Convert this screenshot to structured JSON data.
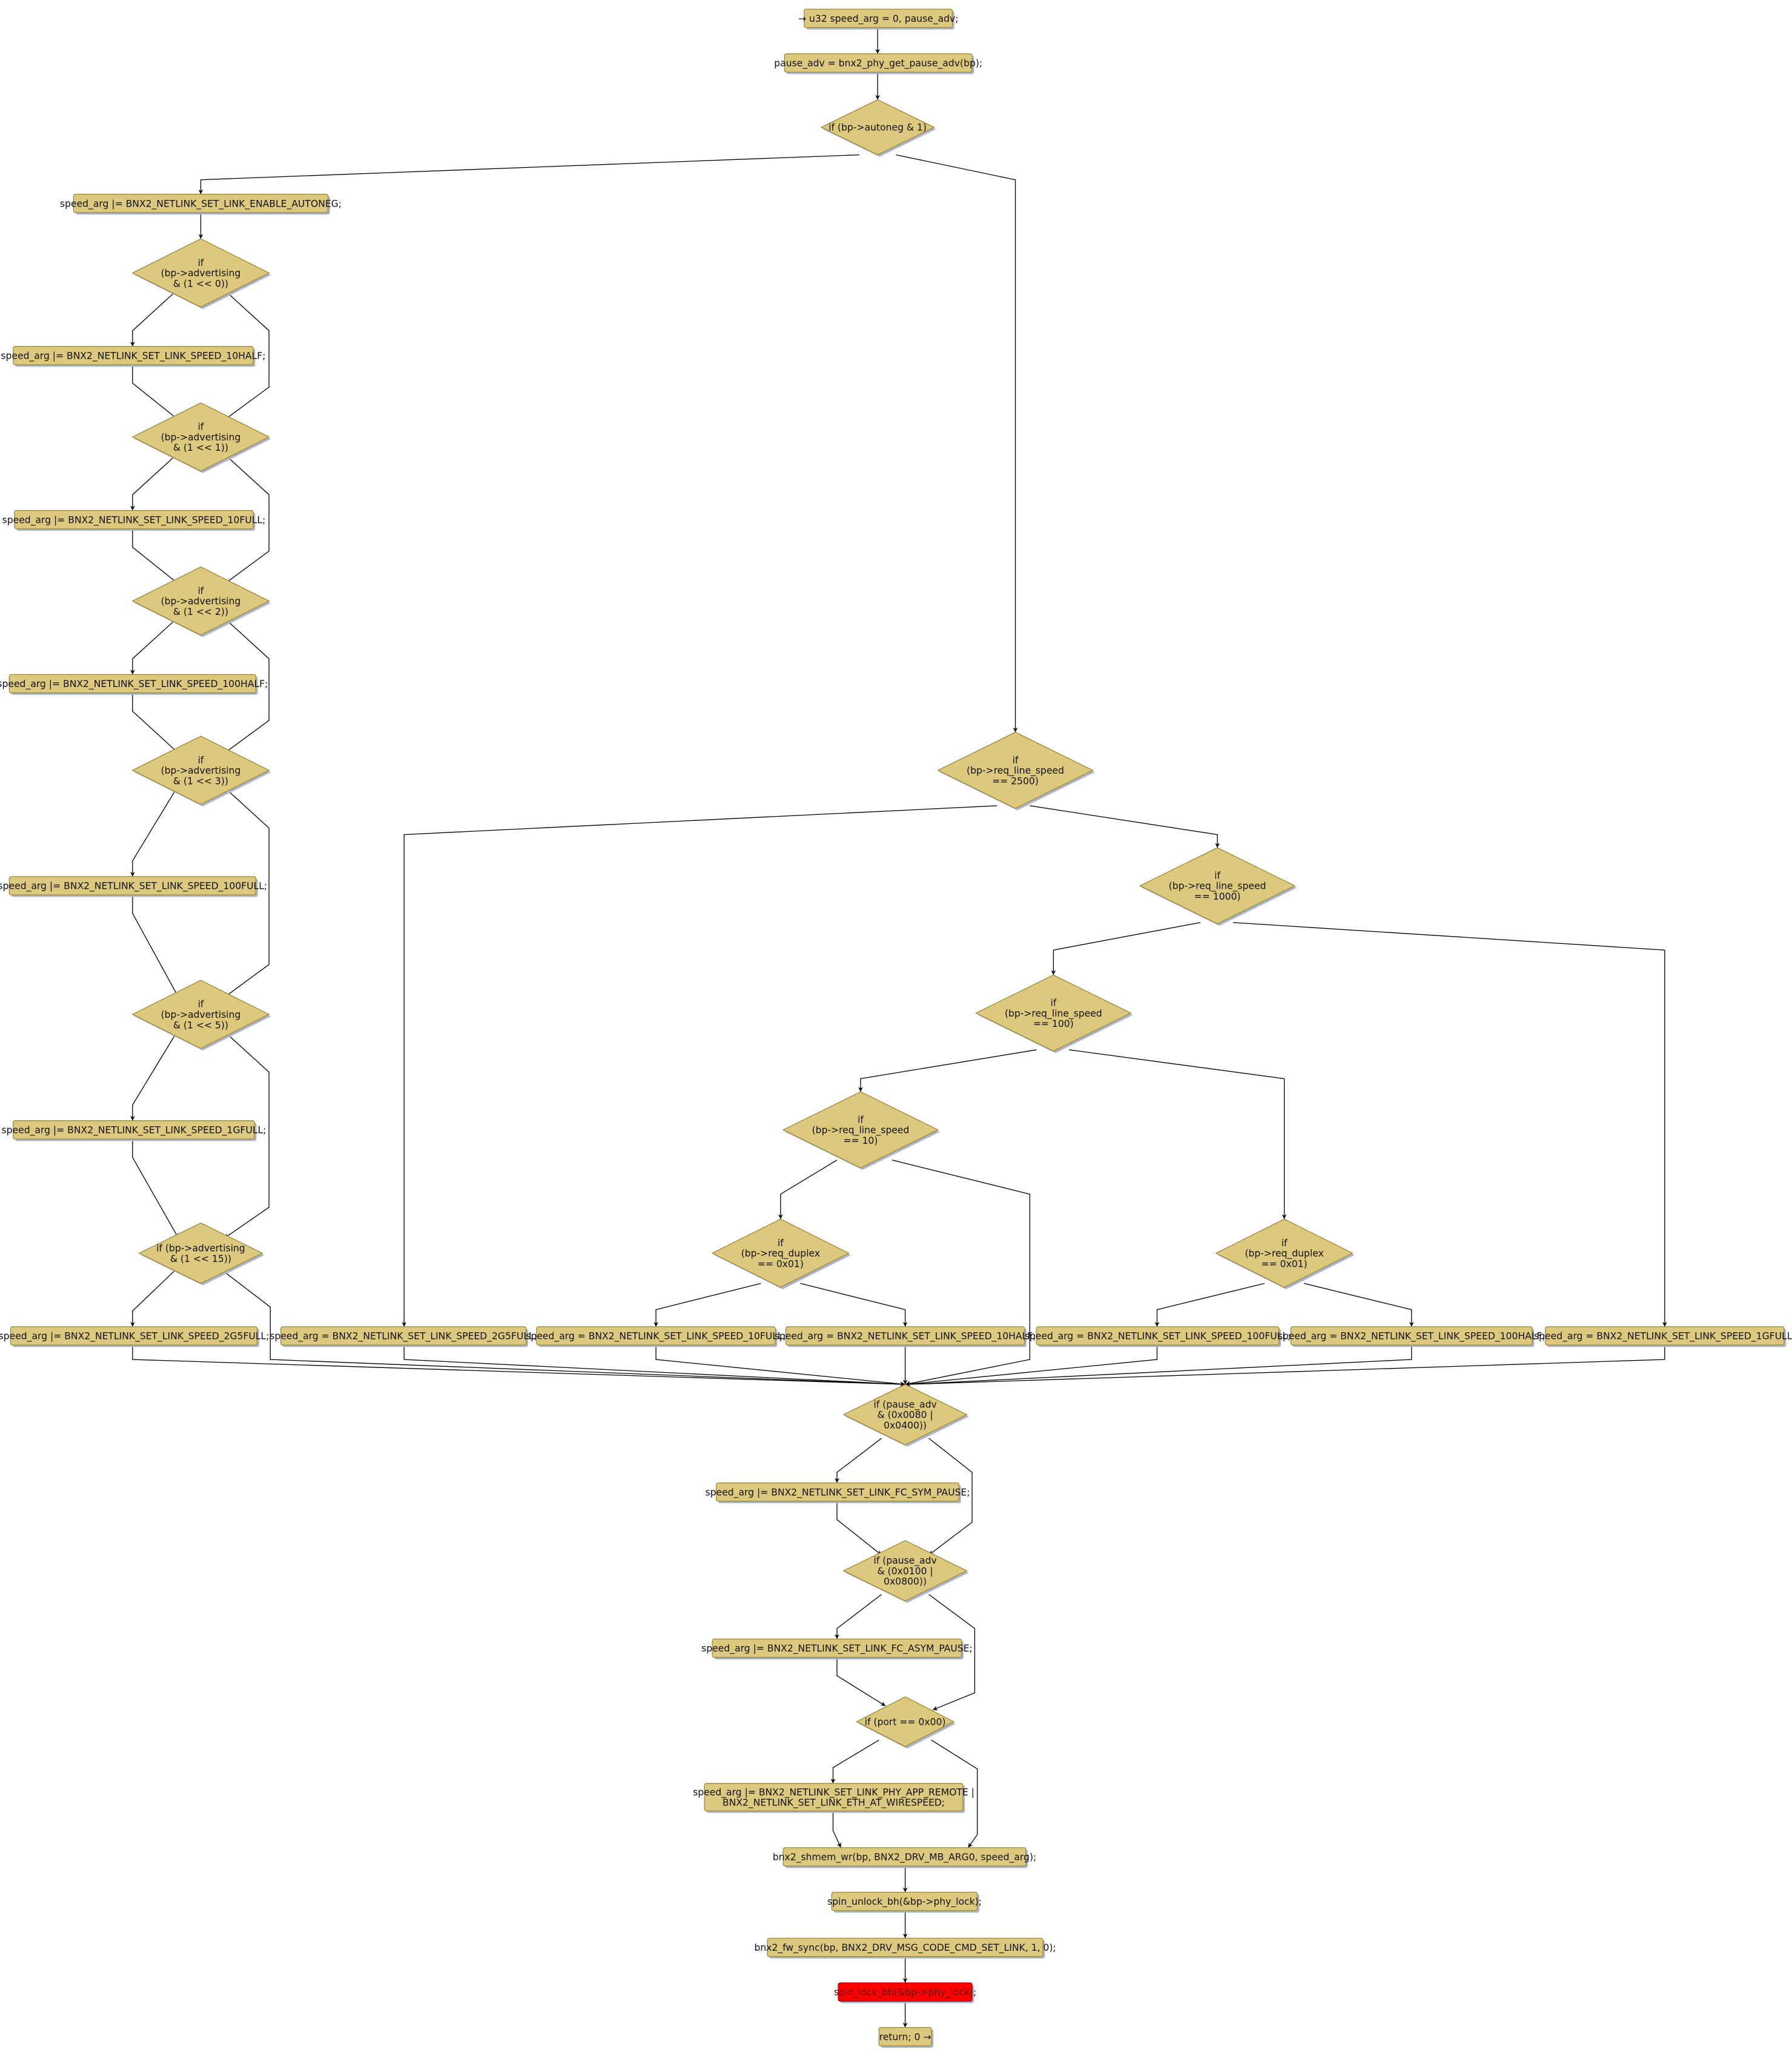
{
  "colors": {
    "node_fill": "#ddc97d",
    "highlight_fill": "#ff0000",
    "shadow": "#aab5cf"
  },
  "nodes": [
    {
      "id": "n0",
      "shape": "box",
      "lines": [
        "→ u32 speed_arg = 0, pause_adv;"
      ]
    },
    {
      "id": "n1",
      "shape": "box",
      "lines": [
        "pause_adv = bnx2_phy_get_pause_adv(bp);"
      ]
    },
    {
      "id": "d0",
      "shape": "diamond",
      "lines": [
        "if (bp->autoneg & 1)"
      ]
    },
    {
      "id": "n2",
      "shape": "box",
      "lines": [
        "speed_arg |= BNX2_NETLINK_SET_LINK_ENABLE_AUTONEG;"
      ]
    },
    {
      "id": "d1",
      "shape": "diamond",
      "lines": [
        "if",
        "(bp->advertising",
        "& (1 << 0))"
      ]
    },
    {
      "id": "n3",
      "shape": "box",
      "lines": [
        "speed_arg |= BNX2_NETLINK_SET_LINK_SPEED_10HALF;"
      ]
    },
    {
      "id": "d2",
      "shape": "diamond",
      "lines": [
        "if",
        "(bp->advertising",
        "& (1 << 1))"
      ]
    },
    {
      "id": "n4",
      "shape": "box",
      "lines": [
        "speed_arg |= BNX2_NETLINK_SET_LINK_SPEED_10FULL;"
      ]
    },
    {
      "id": "d3",
      "shape": "diamond",
      "lines": [
        "if",
        "(bp->advertising",
        "& (1 << 2))"
      ]
    },
    {
      "id": "n5",
      "shape": "box",
      "lines": [
        "speed_arg |= BNX2_NETLINK_SET_LINK_SPEED_100HALF;"
      ]
    },
    {
      "id": "d4",
      "shape": "diamond",
      "lines": [
        "if",
        "(bp->advertising",
        "& (1 << 3))"
      ]
    },
    {
      "id": "n6",
      "shape": "box",
      "lines": [
        "speed_arg |= BNX2_NETLINK_SET_LINK_SPEED_100FULL;"
      ]
    },
    {
      "id": "d5",
      "shape": "diamond",
      "lines": [
        "if",
        "(bp->advertising",
        "& (1 << 5))"
      ]
    },
    {
      "id": "n7",
      "shape": "box",
      "lines": [
        "speed_arg |= BNX2_NETLINK_SET_LINK_SPEED_1GFULL;"
      ]
    },
    {
      "id": "d6",
      "shape": "diamond",
      "lines": [
        "if (bp->advertising",
        "& (1 << 15))"
      ]
    },
    {
      "id": "n8",
      "shape": "box",
      "lines": [
        "speed_arg |= BNX2_NETLINK_SET_LINK_SPEED_2G5FULL;"
      ]
    },
    {
      "id": "d7",
      "shape": "diamond",
      "lines": [
        "if",
        "(bp->req_line_speed",
        "== 2500)"
      ]
    },
    {
      "id": "n9",
      "shape": "box",
      "lines": [
        "speed_arg = BNX2_NETLINK_SET_LINK_SPEED_2G5FULL;"
      ]
    },
    {
      "id": "d8",
      "shape": "diamond",
      "lines": [
        "if",
        "(bp->req_line_speed",
        "== 1000)"
      ]
    },
    {
      "id": "d9",
      "shape": "diamond",
      "lines": [
        "if",
        "(bp->req_line_speed",
        "== 100)"
      ]
    },
    {
      "id": "d10",
      "shape": "diamond",
      "lines": [
        "if",
        "(bp->req_line_speed",
        "== 10)"
      ]
    },
    {
      "id": "d12",
      "shape": "diamond",
      "lines": [
        "if",
        "(bp->req_duplex",
        "== 0x01)"
      ]
    },
    {
      "id": "d11",
      "shape": "diamond",
      "lines": [
        "if",
        "(bp->req_duplex",
        "== 0x01)"
      ]
    },
    {
      "id": "n10",
      "shape": "box",
      "lines": [
        "speed_arg = BNX2_NETLINK_SET_LINK_SPEED_10FULL;"
      ]
    },
    {
      "id": "n11",
      "shape": "box",
      "lines": [
        "speed_arg = BNX2_NETLINK_SET_LINK_SPEED_10HALF;"
      ]
    },
    {
      "id": "n12",
      "shape": "box",
      "lines": [
        "speed_arg = BNX2_NETLINK_SET_LINK_SPEED_100FULL;"
      ]
    },
    {
      "id": "n13",
      "shape": "box",
      "lines": [
        "speed_arg = BNX2_NETLINK_SET_LINK_SPEED_100HALF;"
      ]
    },
    {
      "id": "n14",
      "shape": "box",
      "lines": [
        "speed_arg = BNX2_NETLINK_SET_LINK_SPEED_1GFULL;"
      ]
    },
    {
      "id": "d13",
      "shape": "diamond",
      "lines": [
        "if (pause_adv",
        "& (0x0080 |",
        "0x0400))"
      ]
    },
    {
      "id": "n15",
      "shape": "box",
      "lines": [
        "speed_arg |= BNX2_NETLINK_SET_LINK_FC_SYM_PAUSE;"
      ]
    },
    {
      "id": "d14",
      "shape": "diamond",
      "lines": [
        "if (pause_adv",
        "& (0x0100 |",
        "0x0800))"
      ]
    },
    {
      "id": "n16",
      "shape": "box",
      "lines": [
        "speed_arg |= BNX2_NETLINK_SET_LINK_FC_ASYM_PAUSE;"
      ]
    },
    {
      "id": "d15",
      "shape": "diamond",
      "lines": [
        "if (port == 0x00)"
      ]
    },
    {
      "id": "n17",
      "shape": "box",
      "lines": [
        "speed_arg |= BNX2_NETLINK_SET_LINK_PHY_APP_REMOTE |",
        "BNX2_NETLINK_SET_LINK_ETH_AT_WIRESPEED;"
      ]
    },
    {
      "id": "n18",
      "shape": "box",
      "lines": [
        "bnx2_shmem_wr(bp, BNX2_DRV_MB_ARG0, speed_arg);"
      ]
    },
    {
      "id": "n19",
      "shape": "box",
      "lines": [
        "spin_unlock_bh(&bp->phy_lock);"
      ]
    },
    {
      "id": "n20",
      "shape": "box",
      "lines": [
        "bnx2_fw_sync(bp, BNX2_DRV_MSG_CODE_CMD_SET_LINK, 1, 0);"
      ]
    },
    {
      "id": "n21",
      "shape": "box",
      "highlight": true,
      "lines": [
        "spin_lock_bh(&bp->phy_lock);"
      ]
    },
    {
      "id": "n22",
      "shape": "box",
      "lines": [
        "return; 0 →"
      ]
    }
  ]
}
